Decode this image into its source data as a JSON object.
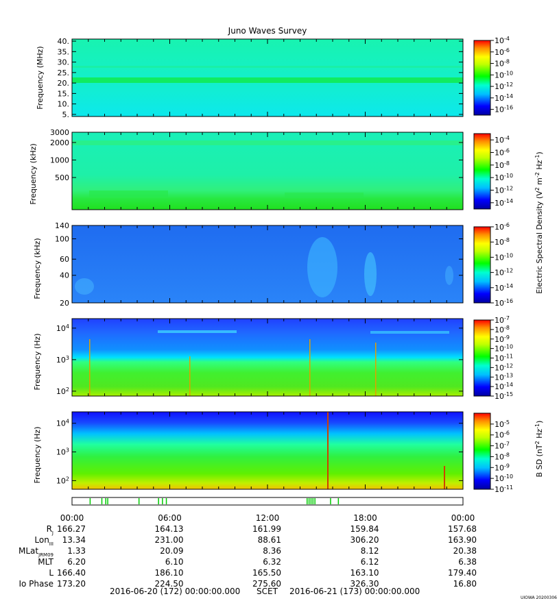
{
  "title": "Juno Waves Survey",
  "credit": "UIOWA 20200306",
  "chart_data": {
    "type": "heatmap",
    "time_ticks": [
      "00:00",
      "06:00",
      "12:00",
      "18:00",
      "00:00"
    ],
    "panels": [
      {
        "ylabel": "Frequency (MHz)",
        "y_scale": "linear",
        "ylim": [
          4,
          41
        ],
        "yticks": [
          {
            "v": 5,
            "label": "5."
          },
          {
            "v": 10,
            "label": "10."
          },
          {
            "v": 15,
            "label": "15."
          },
          {
            "v": 20,
            "label": "20."
          },
          {
            "v": 25,
            "label": "25."
          },
          {
            "v": 30,
            "label": "30."
          },
          {
            "v": 35,
            "label": "35."
          },
          {
            "v": 40,
            "label": "40."
          }
        ],
        "colorbar": {
          "min_exp": -17,
          "max_exp": -4,
          "ticks": [
            {
              "exp": -4,
              "label": "-4"
            },
            {
              "exp": -6,
              "label": "-6"
            },
            {
              "exp": -8,
              "label": "-8"
            },
            {
              "exp": -10,
              "label": "-10"
            },
            {
              "exp": -12,
              "label": "-12"
            },
            {
              "exp": -14,
              "label": "-14"
            },
            {
              "exp": -16,
              "label": "-16"
            }
          ]
        }
      },
      {
        "ylabel": "Frequency (kHz)",
        "y_scale": "log",
        "ylim": [
          140,
          3000
        ],
        "yticks": [
          {
            "v": 500,
            "label": "500"
          },
          {
            "v": 1000,
            "label": "1000"
          },
          {
            "v": 2000,
            "label": "2000"
          },
          {
            "v": 3000,
            "label": "3000"
          }
        ],
        "colorbar": {
          "min_exp": -15,
          "max_exp": -3,
          "ticks": [
            {
              "exp": -4,
              "label": "-4"
            },
            {
              "exp": -6,
              "label": "-6"
            },
            {
              "exp": -8,
              "label": "-8"
            },
            {
              "exp": -10,
              "label": "-10"
            },
            {
              "exp": -12,
              "label": "-12"
            },
            {
              "exp": -14,
              "label": "-14"
            }
          ]
        }
      },
      {
        "ylabel": "Frequency (kHz)",
        "y_scale": "log",
        "ylim": [
          20,
          140
        ],
        "yticks": [
          {
            "v": 20,
            "label": "20"
          },
          {
            "v": 40,
            "label": "40"
          },
          {
            "v": 60,
            "label": "60"
          },
          {
            "v": 100,
            "label": "100"
          },
          {
            "v": 140,
            "label": "140"
          }
        ],
        "colorbar": {
          "min_exp": -16,
          "max_exp": -6,
          "ticks": [
            {
              "exp": -6,
              "label": "-6"
            },
            {
              "exp": -8,
              "label": "-8"
            },
            {
              "exp": -10,
              "label": "-10"
            },
            {
              "exp": -12,
              "label": "-12"
            },
            {
              "exp": -14,
              "label": "-14"
            },
            {
              "exp": -16,
              "label": "-16"
            }
          ]
        }
      },
      {
        "ylabel": "Frequency (Hz)",
        "y_scale": "log",
        "ylim": [
          70,
          20000
        ],
        "yticks": [
          {
            "v": 100,
            "base": "10",
            "exp": "2"
          },
          {
            "v": 1000,
            "base": "10",
            "exp": "3"
          },
          {
            "v": 10000,
            "base": "10",
            "exp": "4"
          }
        ],
        "colorbar": {
          "min_exp": -15,
          "max_exp": -7,
          "ticks": [
            {
              "exp": -7,
              "label": "-7"
            },
            {
              "exp": -8,
              "label": "-8"
            },
            {
              "exp": -9,
              "label": "-9"
            },
            {
              "exp": -10,
              "label": "-10"
            },
            {
              "exp": -11,
              "label": "-11"
            },
            {
              "exp": -12,
              "label": "-12"
            },
            {
              "exp": -13,
              "label": "-13"
            },
            {
              "exp": -14,
              "label": "-14"
            },
            {
              "exp": -15,
              "label": "-15"
            }
          ]
        }
      },
      {
        "ylabel": "Frequency (Hz)",
        "y_scale": "log",
        "ylim": [
          50,
          25000
        ],
        "yticks": [
          {
            "v": 100,
            "base": "10",
            "exp": "2"
          },
          {
            "v": 1000,
            "base": "10",
            "exp": "3"
          },
          {
            "v": 10000,
            "base": "10",
            "exp": "4"
          }
        ],
        "colorbar": {
          "min_exp": -11,
          "max_exp": -4,
          "ticks": [
            {
              "exp": -5,
              "label": "-5"
            },
            {
              "exp": -6,
              "label": "-6"
            },
            {
              "exp": -7,
              "label": "-7"
            },
            {
              "exp": -8,
              "label": "-8"
            },
            {
              "exp": -9,
              "label": "-9"
            },
            {
              "exp": -10,
              "label": "-10"
            },
            {
              "exp": -11,
              "label": "-11"
            }
          ]
        }
      }
    ],
    "cb_label_e": "Electric Spectral Density (V",
    "cb_label_b": "B SD (nT",
    "cb_base": "10",
    "ephemeris": [
      {
        "label": "R",
        "sub": "J",
        "values": [
          "166.27",
          "164.13",
          "161.99",
          "159.84",
          "157.68"
        ]
      },
      {
        "label": "Lon",
        "sub": "III",
        "values": [
          "13.34",
          "231.00",
          "88.61",
          "306.20",
          "163.90"
        ]
      },
      {
        "label": "MLat",
        "sub": "JRM09",
        "values": [
          "1.33",
          "20.09",
          "8.36",
          "8.12",
          "20.38"
        ]
      },
      {
        "label": "MLT",
        "sub": "",
        "values": [
          "6.20",
          "6.10",
          "6.32",
          "6.12",
          "6.38"
        ]
      },
      {
        "label": "L",
        "sub": "",
        "values": [
          "166.40",
          "186.10",
          "165.50",
          "163.10",
          "179.40"
        ]
      },
      {
        "label": "Io Phase",
        "sub": "",
        "values": [
          "173.20",
          "224.50",
          "275.60",
          "326.30",
          "16.80"
        ]
      }
    ],
    "scet_start": "2016-06-20 (172) 00:00:00.000",
    "scet_label": "SCET",
    "scet_end": "2016-06-21 (173) 00:00:00.000",
    "mode_bar_color": "#00cc00"
  }
}
